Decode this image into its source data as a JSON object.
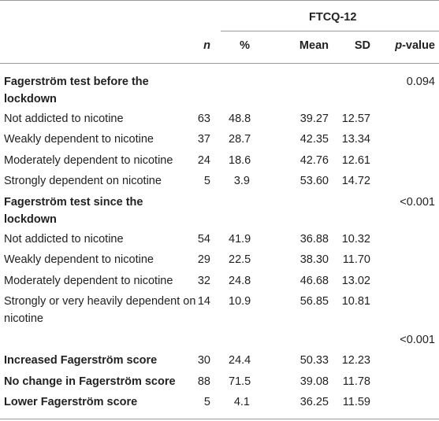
{
  "header": {
    "group": "FTCQ-12",
    "cols": [
      "n",
      "%",
      "Mean",
      "SD",
      "p-value"
    ]
  },
  "sections": [
    {
      "title_line1": "Fagerström test before the",
      "title_line2": "lockdown",
      "pvalue": "0.094",
      "rows": [
        {
          "label": "Not addicted to nicotine",
          "n": "63",
          "pct": "48.8",
          "mean": "39.27",
          "sd": "12.57"
        },
        {
          "label": "Weakly dependent to nicotine",
          "n": "37",
          "pct": "28.7",
          "mean": "42.35",
          "sd": "13.34"
        },
        {
          "label": "Moderately dependent to nicotine",
          "n": "24",
          "pct": "18.6",
          "mean": "42.76",
          "sd": "12.61"
        },
        {
          "label": "Strongly dependent on nicotine",
          "n": "5",
          "pct": "3.9",
          "mean": "53.60",
          "sd": "14.72"
        }
      ]
    },
    {
      "title_line1": "Fagerström test since the",
      "title_line2": "lockdown",
      "pvalue": "<0.001",
      "rows": [
        {
          "label": "Not addicted to nicotine",
          "n": "54",
          "pct": "41.9",
          "mean": "36.88",
          "sd": "10.32"
        },
        {
          "label": "Weakly dependent to nicotine",
          "n": "29",
          "pct": "22.5",
          "mean": "38.30",
          "sd": "11.70"
        },
        {
          "label": "Moderately dependent to nicotine",
          "n": "32",
          "pct": "24.8",
          "mean": "46.68",
          "sd": "13.02"
        },
        {
          "label": "Strongly or very heavily dependent on",
          "label2": "nicotine",
          "n": "14",
          "pct": "10.9",
          "mean": "56.85",
          "sd": "10.81"
        }
      ]
    }
  ],
  "change_pvalue": "<0.001",
  "change_rows": [
    {
      "label": "Increased Fagerström score",
      "n": "30",
      "pct": "24.4",
      "mean": "50.33",
      "sd": "12.23"
    },
    {
      "label": "No change in Fagerström score",
      "n": "88",
      "pct": "71.5",
      "mean": "39.08",
      "sd": "11.78"
    },
    {
      "label": "Lower Fagerström score",
      "n": "5",
      "pct": "4.1",
      "mean": "36.25",
      "sd": "11.59"
    }
  ]
}
